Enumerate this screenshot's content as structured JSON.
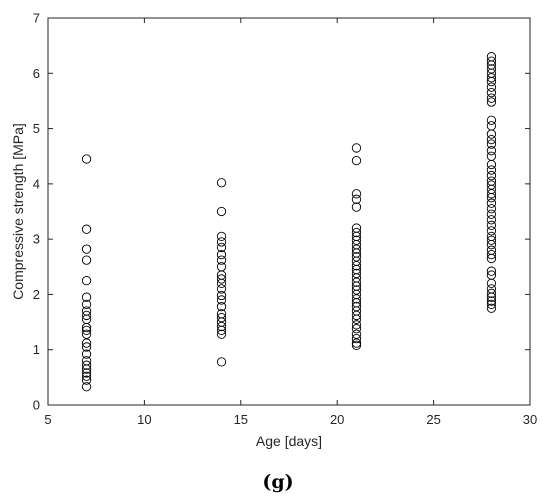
{
  "chart_data": {
    "type": "scatter",
    "title": "",
    "xlabel": "Age [days]",
    "ylabel": "Compressive strength [MPa]",
    "xlim": [
      5,
      30
    ],
    "ylim": [
      0,
      7
    ],
    "xticks": [
      5,
      10,
      15,
      20,
      25,
      30
    ],
    "yticks": [
      0,
      1,
      2,
      3,
      4,
      5,
      6,
      7
    ],
    "grid": false,
    "marker": "open-circle",
    "series": [
      {
        "points": [
          [
            7,
            4.45
          ],
          [
            7,
            3.18
          ],
          [
            7,
            2.82
          ],
          [
            7,
            2.62
          ],
          [
            7,
            2.25
          ],
          [
            7,
            1.95
          ],
          [
            7,
            1.82
          ],
          [
            7,
            1.7
          ],
          [
            7,
            1.62
          ],
          [
            7,
            1.55
          ],
          [
            7,
            1.4
          ],
          [
            7,
            1.35
          ],
          [
            7,
            1.28
          ],
          [
            7,
            1.12
          ],
          [
            7,
            1.05
          ],
          [
            7,
            0.92
          ],
          [
            7,
            0.8
          ],
          [
            7,
            0.72
          ],
          [
            7,
            0.65
          ],
          [
            7,
            0.58
          ],
          [
            7,
            0.52
          ],
          [
            7,
            0.45
          ],
          [
            7,
            0.33
          ],
          [
            14,
            4.02
          ],
          [
            14,
            3.5
          ],
          [
            14,
            3.05
          ],
          [
            14,
            2.95
          ],
          [
            14,
            2.85
          ],
          [
            14,
            2.72
          ],
          [
            14,
            2.62
          ],
          [
            14,
            2.5
          ],
          [
            14,
            2.35
          ],
          [
            14,
            2.28
          ],
          [
            14,
            2.2
          ],
          [
            14,
            2.1
          ],
          [
            14,
            1.98
          ],
          [
            14,
            1.9
          ],
          [
            14,
            1.78
          ],
          [
            14,
            1.65
          ],
          [
            14,
            1.58
          ],
          [
            14,
            1.5
          ],
          [
            14,
            1.42
          ],
          [
            14,
            1.35
          ],
          [
            14,
            1.28
          ],
          [
            14,
            0.78
          ],
          [
            21,
            4.65
          ],
          [
            21,
            4.42
          ],
          [
            21,
            3.82
          ],
          [
            21,
            3.72
          ],
          [
            21,
            3.58
          ],
          [
            21,
            3.2
          ],
          [
            21,
            3.12
          ],
          [
            21,
            3.05
          ],
          [
            21,
            2.98
          ],
          [
            21,
            2.9
          ],
          [
            21,
            2.82
          ],
          [
            21,
            2.75
          ],
          [
            21,
            2.68
          ],
          [
            21,
            2.6
          ],
          [
            21,
            2.52
          ],
          [
            21,
            2.45
          ],
          [
            21,
            2.38
          ],
          [
            21,
            2.3
          ],
          [
            21,
            2.22
          ],
          [
            21,
            2.15
          ],
          [
            21,
            2.08
          ],
          [
            21,
            2.0
          ],
          [
            21,
            1.92
          ],
          [
            21,
            1.85
          ],
          [
            21,
            1.78
          ],
          [
            21,
            1.7
          ],
          [
            21,
            1.62
          ],
          [
            21,
            1.55
          ],
          [
            21,
            1.45
          ],
          [
            21,
            1.38
          ],
          [
            21,
            1.28
          ],
          [
            21,
            1.2
          ],
          [
            21,
            1.12
          ],
          [
            21,
            1.08
          ],
          [
            28,
            6.3
          ],
          [
            28,
            6.22
          ],
          [
            28,
            6.15
          ],
          [
            28,
            6.08
          ],
          [
            28,
            6.0
          ],
          [
            28,
            5.92
          ],
          [
            28,
            5.85
          ],
          [
            28,
            5.75
          ],
          [
            28,
            5.65
          ],
          [
            28,
            5.55
          ],
          [
            28,
            5.48
          ],
          [
            28,
            5.15
          ],
          [
            28,
            5.05
          ],
          [
            28,
            4.9
          ],
          [
            28,
            4.8
          ],
          [
            28,
            4.72
          ],
          [
            28,
            4.6
          ],
          [
            28,
            4.5
          ],
          [
            28,
            4.35
          ],
          [
            28,
            4.25
          ],
          [
            28,
            4.15
          ],
          [
            28,
            4.05
          ],
          [
            28,
            3.98
          ],
          [
            28,
            3.9
          ],
          [
            28,
            3.82
          ],
          [
            28,
            3.75
          ],
          [
            28,
            3.65
          ],
          [
            28,
            3.55
          ],
          [
            28,
            3.45
          ],
          [
            28,
            3.35
          ],
          [
            28,
            3.25
          ],
          [
            28,
            3.15
          ],
          [
            28,
            3.05
          ],
          [
            28,
            2.98
          ],
          [
            28,
            2.9
          ],
          [
            28,
            2.8
          ],
          [
            28,
            2.72
          ],
          [
            28,
            2.65
          ],
          [
            28,
            2.42
          ],
          [
            28,
            2.35
          ],
          [
            28,
            2.2
          ],
          [
            28,
            2.1
          ],
          [
            28,
            2.02
          ],
          [
            28,
            1.95
          ],
          [
            28,
            1.88
          ],
          [
            28,
            1.82
          ],
          [
            28,
            1.75
          ]
        ]
      }
    ]
  },
  "panel_label": "(g)"
}
